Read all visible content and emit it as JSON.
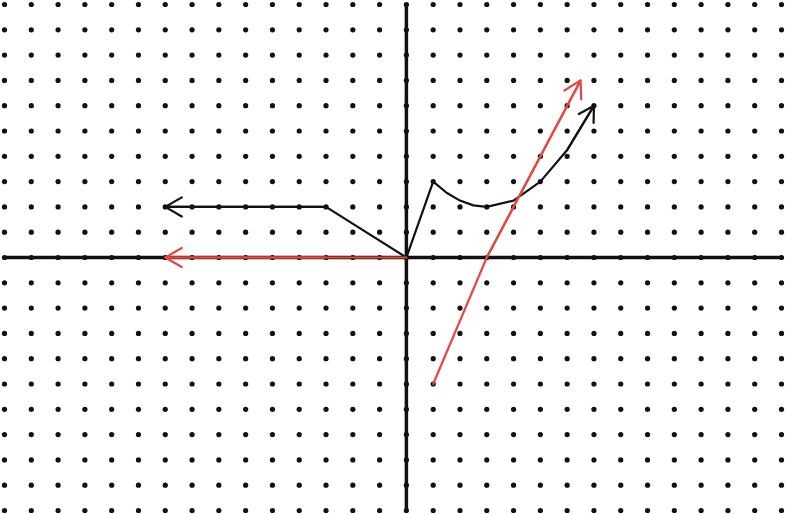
{
  "chart_data": {
    "type": "line",
    "xlim": [
      -15,
      14
    ],
    "ylim": [
      -10,
      10
    ],
    "xticks": [
      -15,
      -14,
      -13,
      -12,
      -11,
      -10,
      -9,
      -8,
      -7,
      -6,
      -5,
      -4,
      -3,
      -2,
      -1,
      0,
      1,
      2,
      3,
      4,
      5,
      6,
      7,
      8,
      9,
      10,
      11,
      12,
      13,
      14
    ],
    "yticks": [
      -10,
      -9,
      -8,
      -7,
      -6,
      -5,
      -4,
      -3,
      -2,
      -1,
      0,
      1,
      2,
      3,
      4,
      5,
      6,
      7,
      8,
      9,
      10
    ],
    "grid": true,
    "tick_labels": false,
    "series": [
      {
        "color": "#111111",
        "marker": "arrow",
        "x": [
          -9,
          -3,
          0,
          1,
          1.5,
          2,
          2.5,
          3,
          4,
          5,
          6,
          7
        ],
        "y": [
          2,
          2,
          0,
          3,
          2.56,
          2.25,
          2.06,
          2,
          2.25,
          3,
          4.25,
          6
        ]
      },
      {
        "color": "#e8473f",
        "marker": "arrow",
        "x": [
          -9,
          -3,
          0,
          null,
          1,
          3,
          6.5
        ],
        "y": [
          0,
          0,
          0,
          null,
          -5,
          0,
          7
        ]
      }
    ]
  }
}
